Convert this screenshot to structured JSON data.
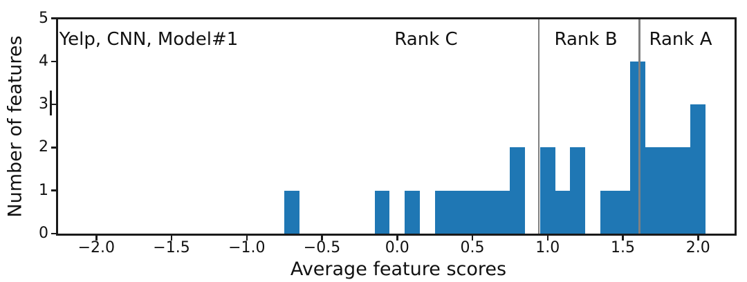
{
  "chart_data": {
    "type": "bar",
    "subtype": "histogram",
    "annotation": "Yelp, CNN, Model#1",
    "region_labels": [
      "Rank C",
      "Rank B",
      "Rank A"
    ],
    "xlabel": "Average feature scores",
    "ylabel": "Number of features",
    "xlim": [
      -2.25,
      2.24
    ],
    "ylim": [
      0,
      5
    ],
    "xticks": [
      -2.0,
      -1.5,
      -1.0,
      -0.5,
      0.0,
      0.5,
      1.0,
      1.5,
      2.0
    ],
    "xtick_labels": [
      "−2.0",
      "−1.5",
      "−1.0",
      "−0.5",
      "0.0",
      "0.5",
      "1.0",
      "1.5",
      "2.0"
    ],
    "yticks": [
      0,
      1,
      2,
      3,
      4,
      5
    ],
    "ytick_labels": [
      "0",
      "1",
      "2",
      "3",
      "4",
      "5"
    ],
    "grid": false,
    "legend": null,
    "bar_color": "#1f77b4",
    "bin_start": -0.75,
    "bin_width": 0.1,
    "bin_counts": [
      1,
      0,
      0,
      0,
      0,
      0,
      1,
      0,
      1,
      0,
      1,
      1,
      1,
      1,
      1,
      2,
      0,
      2,
      1,
      2,
      0,
      1,
      1,
      4,
      2,
      2,
      2,
      3
    ],
    "vlines": {
      "color": "#808080",
      "values": [
        0.94,
        1.61
      ]
    }
  }
}
